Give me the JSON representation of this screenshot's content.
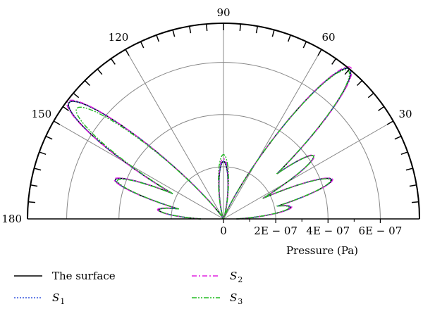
{
  "chart_data": {
    "type": "polar-line",
    "title": "",
    "radial_axis": {
      "label": "Pressure (Pa)",
      "ticks": [
        0,
        2e-07,
        4e-07,
        6e-07
      ],
      "tick_labels": [
        "0",
        "2E − 07",
        "4E − 07",
        "6E − 07"
      ],
      "max": 7.5e-07
    },
    "angular_axis": {
      "range_deg": [
        0,
        180
      ],
      "labels": [
        {
          "deg": 30,
          "text": "30"
        },
        {
          "deg": 60,
          "text": "60"
        },
        {
          "deg": 90,
          "text": "90"
        },
        {
          "deg": 120,
          "text": "120"
        },
        {
          "deg": 150,
          "text": "150"
        },
        {
          "deg": 180,
          "text": "180"
        }
      ],
      "spoke_step_deg": 30,
      "minor_tick_step_deg": 5
    },
    "lobes": [
      {
        "center_deg": 10,
        "peak": 2.6e-07
      },
      {
        "center_deg": 20,
        "peak": 4.4e-07
      },
      {
        "center_deg": 35,
        "peak": 4.2e-07
      },
      {
        "center_deg": 50,
        "peak": 7.5e-07
      },
      {
        "center_deg": 90,
        "peak": 2.2e-07
      },
      {
        "center_deg": 143,
        "peak": 7.4e-07
      },
      {
        "center_deg": 160,
        "peak": 4.4e-07
      },
      {
        "center_deg": 172,
        "peak": 2.5e-07
      }
    ],
    "series": [
      {
        "name": "The surface",
        "color": "#000000",
        "dash": "solid",
        "scale": [
          1,
          1,
          1,
          1,
          1,
          1,
          1,
          1
        ]
      },
      {
        "name": "S1",
        "color": "#3355dd",
        "dash": "dotted",
        "scale": [
          1,
          1,
          1,
          1,
          1.0,
          1.0,
          1.0,
          1.0
        ]
      },
      {
        "name": "S2",
        "color": "#e020e0",
        "dash": "dashdot",
        "scale": [
          1.02,
          1.01,
          1.01,
          1.01,
          1.05,
          1.01,
          1.01,
          1.02
        ]
      },
      {
        "name": "S3",
        "color": "#22bb22",
        "dash": "dashdotdot",
        "scale": [
          0.98,
          0.99,
          1.0,
          0.99,
          1.12,
          0.95,
          0.98,
          0.99
        ]
      }
    ],
    "legend": {
      "placement": "bottom",
      "entries": [
        {
          "label": "The surface",
          "sub": ""
        },
        {
          "label": "S",
          "sub": "2"
        },
        {
          "label": "S",
          "sub": "1"
        },
        {
          "label": "S",
          "sub": "3"
        }
      ]
    }
  }
}
